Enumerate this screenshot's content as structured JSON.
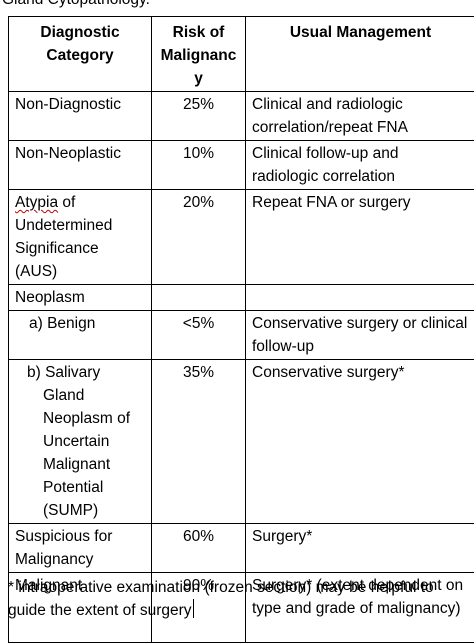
{
  "top_text": "Gland Cytopathology.",
  "table": {
    "headers": {
      "category": "Diagnostic Category",
      "risk": "Risk of Malignancy",
      "management": "Usual Management"
    },
    "rows": [
      {
        "category": "Non-Diagnostic",
        "risk": "25%",
        "management": "Clinical and radiologic correlation/repeat FNA"
      },
      {
        "category": "Non-Neoplastic",
        "risk": "10%",
        "management": "Clinical follow-up and radiologic correlation"
      },
      {
        "category_first": "Atypia",
        "category_rest": " of Undetermined Significance (AUS)",
        "risk": "20%",
        "management": "Repeat FNA or surgery"
      },
      {
        "category": "Neoplasm",
        "risk": "",
        "management": ""
      },
      {
        "category": "a) Benign",
        "risk": "<5%",
        "management": "Conservative surgery or clinical follow-up"
      },
      {
        "category_first": "b) Salivary",
        "category_rest": "Gland Neoplasm of Uncertain Malignant Potential (SUMP)",
        "risk": "35%",
        "management": "Conservative surgery*"
      },
      {
        "category": "Suspicious for Malignancy",
        "risk": "60%",
        "management": "Surgery*"
      },
      {
        "category": "Malignant",
        "risk": "90%",
        "management": "Surgery* (extent dependent on type and grade of malignancy)"
      }
    ]
  },
  "footnote": {
    "line1": "* intraoperative examination (frozen section) may be helpful to",
    "line2": "guide the extent of surgery"
  },
  "colors": {
    "spellcheck_underline": "#c00000"
  }
}
